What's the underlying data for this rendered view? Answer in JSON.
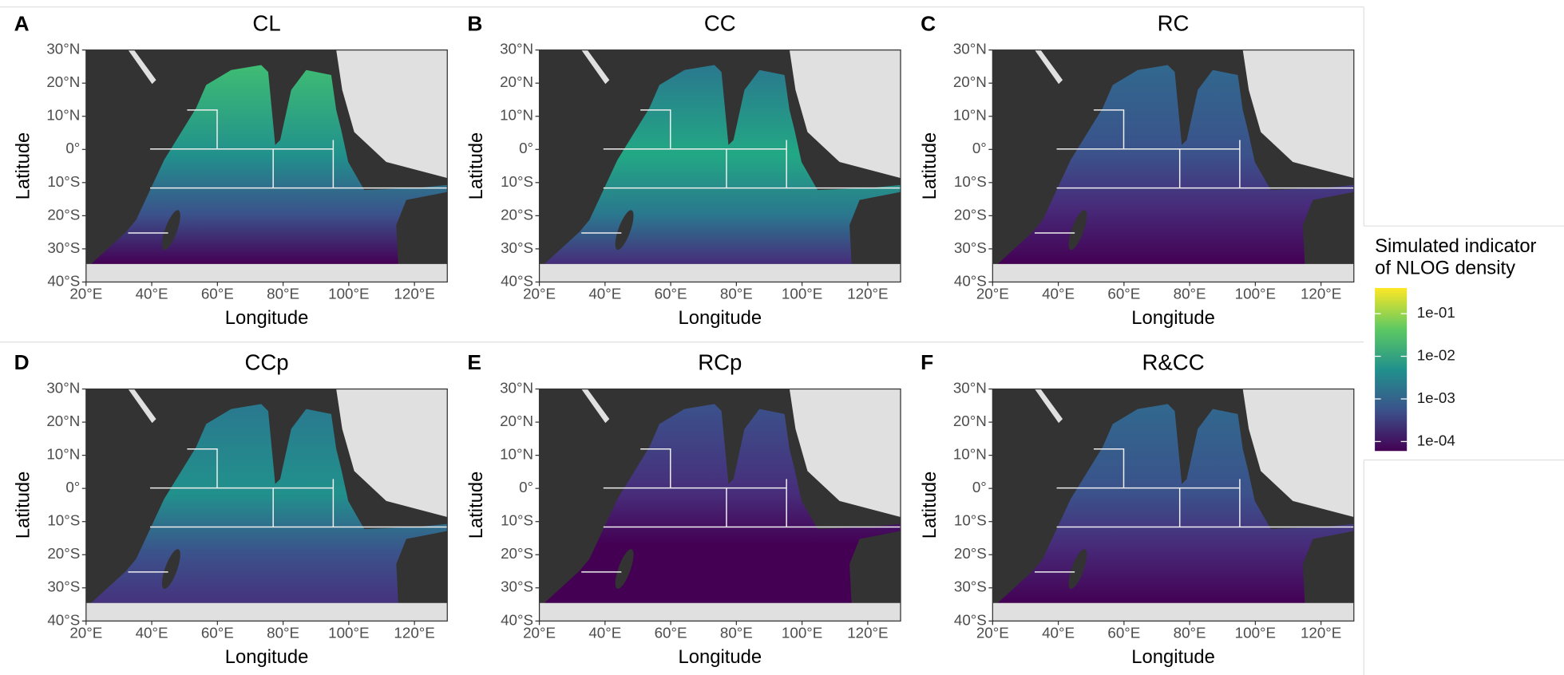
{
  "axes": {
    "xlabel": "Longitude",
    "ylabel": "Latitude",
    "xlim": [
      20,
      130
    ],
    "ylim": [
      -40,
      30
    ],
    "xticks": [
      {
        "value": 20,
        "label": "20°E"
      },
      {
        "value": 40,
        "label": "40°E"
      },
      {
        "value": 60,
        "label": "60°E"
      },
      {
        "value": 80,
        "label": "80°E"
      },
      {
        "value": 100,
        "label": "100°E"
      },
      {
        "value": 120,
        "label": "120°E"
      }
    ],
    "yticks": [
      {
        "value": 30,
        "label": "30°N"
      },
      {
        "value": 20,
        "label": "20°N"
      },
      {
        "value": 10,
        "label": "10°N"
      },
      {
        "value": 0,
        "label": "0°"
      },
      {
        "value": -10,
        "label": "10°S"
      },
      {
        "value": -20,
        "label": "20°S"
      },
      {
        "value": -30,
        "label": "30°S"
      },
      {
        "value": -40,
        "label": "40°S"
      }
    ]
  },
  "panels": [
    {
      "letter": "A",
      "title": "CL"
    },
    {
      "letter": "B",
      "title": "CC"
    },
    {
      "letter": "C",
      "title": "RC"
    },
    {
      "letter": "D",
      "title": "CCp"
    },
    {
      "letter": "E",
      "title": "RCp"
    },
    {
      "letter": "F",
      "title": "R&CC"
    }
  ],
  "legend": {
    "title": [
      "Simulated indicator",
      "of NLOG density"
    ],
    "log": true,
    "lim": [
      6e-05,
      0.4
    ],
    "ticks": [
      {
        "value": 0.1,
        "label": "1e-01"
      },
      {
        "value": 0.01,
        "label": "1e-02"
      },
      {
        "value": 0.001,
        "label": "1e-03"
      },
      {
        "value": 0.0001,
        "label": "1e-04"
      }
    ]
  }
}
